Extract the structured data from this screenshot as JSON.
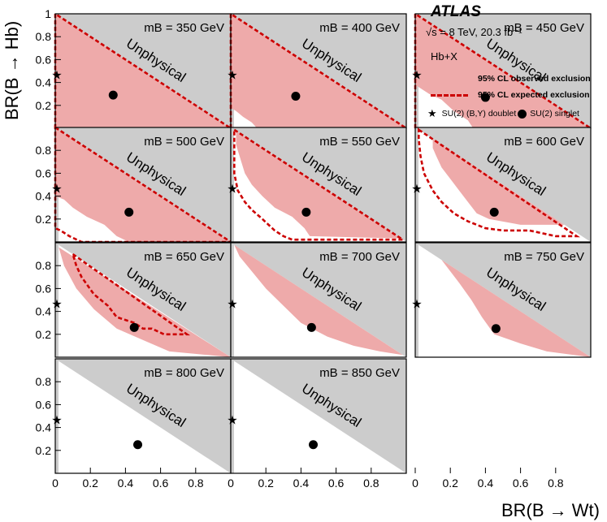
{
  "chart_data": {
    "type": "area",
    "brand": "ATLAS",
    "energy_label": "√s = 8 TeV, 20.3 fb⁻¹",
    "channel": "Hb+X",
    "xlabel": "BR(B → Wt)",
    "ylabel": "BR(B → Hb)",
    "xlim": [
      0,
      1
    ],
    "ylim": [
      0,
      1
    ],
    "x_ticks": [
      "0",
      "0.2",
      "0.4",
      "0.6",
      "0.8"
    ],
    "y_ticks": [
      "0.2",
      "0.4",
      "0.6",
      "0.8",
      "1"
    ],
    "unphysical_label": "Unphysical",
    "legend": {
      "observed": "95% CL observed exclusion",
      "expected": "95% CL expected exclusion",
      "doublet": "SU(2) (B,Y) doublet",
      "singlet": "SU(2) singlet"
    },
    "colors": {
      "observed": "#eeaaaa",
      "expected": "#cc0000",
      "unphysical": "#cccccc"
    },
    "doublet_point": [
      0.0,
      0.47
    ],
    "singlet_points": {
      "350": [
        0.33,
        0.29
      ],
      "400": [
        0.37,
        0.28
      ],
      "450": [
        0.4,
        0.27
      ],
      "500": [
        0.42,
        0.26
      ],
      "550": [
        0.43,
        0.26
      ],
      "600": [
        0.45,
        0.26
      ],
      "650": [
        0.45,
        0.26
      ],
      "700": [
        0.46,
        0.26
      ],
      "750": [
        0.46,
        0.25
      ],
      "800": [
        0.47,
        0.25
      ],
      "850": [
        0.47,
        0.25
      ]
    },
    "panels": [
      {
        "mass_label": "m_B = 350 GeV",
        "observed": [
          [
            0,
            0
          ],
          [
            0,
            1
          ],
          [
            1,
            0
          ]
        ],
        "expected": [
          [
            0,
            0
          ],
          [
            0,
            1
          ],
          [
            1,
            0
          ]
        ]
      },
      {
        "mass_label": "m_B = 400 GeV",
        "observed": [
          [
            0,
            1
          ],
          [
            1,
            0
          ],
          [
            0.15,
            0
          ],
          [
            0.12,
            0.05
          ],
          [
            0.07,
            0.1
          ],
          [
            0.03,
            0.15
          ],
          [
            0,
            0.18
          ]
        ],
        "expected": [
          [
            0,
            0
          ],
          [
            0,
            1
          ],
          [
            1,
            0
          ]
        ]
      },
      {
        "mass_label": "m_B = 450 GeV",
        "observed": [
          [
            0,
            1
          ],
          [
            1,
            0
          ],
          [
            0.33,
            0
          ],
          [
            0.3,
            0.07
          ],
          [
            0.22,
            0.15
          ],
          [
            0.15,
            0.25
          ],
          [
            0.08,
            0.3
          ],
          [
            0.03,
            0.35
          ],
          [
            0,
            0.38
          ]
        ],
        "expected": [
          [
            0,
            0
          ],
          [
            0,
            1
          ],
          [
            1,
            0
          ]
        ]
      },
      {
        "mass_label": "m_B = 500 GeV",
        "observed": [
          [
            0,
            1
          ],
          [
            1,
            0
          ],
          [
            0.42,
            0
          ],
          [
            0.35,
            0.05
          ],
          [
            0.28,
            0.15
          ],
          [
            0.18,
            0.22
          ],
          [
            0.1,
            0.3
          ],
          [
            0.05,
            0.37
          ],
          [
            0,
            0.4
          ]
        ],
        "expected": [
          [
            0,
            1
          ],
          [
            1,
            0
          ],
          [
            0.15,
            0
          ],
          [
            0.08,
            0.05
          ],
          [
            0.03,
            0.1
          ],
          [
            0,
            0.12
          ]
        ]
      },
      {
        "mass_label": "m_B = 550 GeV",
        "observed": [
          [
            0.03,
            0.97
          ],
          [
            0.97,
            0.03
          ],
          [
            0.45,
            0.05
          ],
          [
            0.42,
            0.12
          ],
          [
            0.35,
            0.22
          ],
          [
            0.25,
            0.3
          ],
          [
            0.18,
            0.4
          ],
          [
            0.12,
            0.5
          ],
          [
            0.08,
            0.6
          ],
          [
            0.05,
            0.75
          ],
          [
            0.03,
            0.85
          ]
        ],
        "expected": [
          [
            0.02,
            0.98
          ],
          [
            0.98,
            0.02
          ],
          [
            0.35,
            0.02
          ],
          [
            0.3,
            0.05
          ],
          [
            0.25,
            0.1
          ],
          [
            0.18,
            0.2
          ],
          [
            0.12,
            0.28
          ],
          [
            0.08,
            0.35
          ],
          [
            0.04,
            0.45
          ],
          [
            0.02,
            0.6
          ],
          [
            0.02,
            0.8
          ]
        ]
      },
      {
        "mass_label": "m_B = 600 GeV",
        "observed": [
          [
            0.1,
            0.9
          ],
          [
            0.85,
            0.15
          ],
          [
            0.6,
            0.15
          ],
          [
            0.42,
            0.2
          ],
          [
            0.35,
            0.25
          ],
          [
            0.3,
            0.35
          ],
          [
            0.25,
            0.45
          ],
          [
            0.2,
            0.55
          ],
          [
            0.15,
            0.65
          ],
          [
            0.12,
            0.75
          ],
          [
            0.1,
            0.82
          ]
        ],
        "expected": [
          [
            0.02,
            0.98
          ],
          [
            0.92,
            0.05
          ],
          [
            0.8,
            0.05
          ],
          [
            0.65,
            0.1
          ],
          [
            0.5,
            0.1
          ],
          [
            0.4,
            0.12
          ],
          [
            0.3,
            0.18
          ],
          [
            0.22,
            0.25
          ],
          [
            0.15,
            0.35
          ],
          [
            0.1,
            0.45
          ],
          [
            0.05,
            0.6
          ],
          [
            0.03,
            0.75
          ],
          [
            0.02,
            0.9
          ]
        ]
      },
      {
        "mass_label": "m_B = 650 GeV",
        "observed": [
          [
            0.02,
            0.96
          ],
          [
            1,
            0
          ],
          [
            0.65,
            0.05
          ],
          [
            0.5,
            0.15
          ],
          [
            0.35,
            0.25
          ],
          [
            0.22,
            0.42
          ],
          [
            0.12,
            0.6
          ],
          [
            0.05,
            0.8
          ]
        ],
        "expected": [
          [
            0.1,
            0.9
          ],
          [
            0.75,
            0.2
          ],
          [
            0.62,
            0.2
          ],
          [
            0.55,
            0.25
          ],
          [
            0.5,
            0.25
          ],
          [
            0.45,
            0.3
          ],
          [
            0.35,
            0.35
          ],
          [
            0.3,
            0.45
          ],
          [
            0.22,
            0.55
          ],
          [
            0.15,
            0.7
          ],
          [
            0.12,
            0.8
          ]
        ]
      },
      {
        "mass_label": "m_B = 700 GeV",
        "observed": [
          [
            0.02,
            0.98
          ],
          [
            0.98,
            0.02
          ],
          [
            0.85,
            0.05
          ],
          [
            0.7,
            0.1
          ],
          [
            0.55,
            0.18
          ],
          [
            0.4,
            0.3
          ],
          [
            0.3,
            0.45
          ],
          [
            0.2,
            0.6
          ],
          [
            0.12,
            0.75
          ],
          [
            0.05,
            0.88
          ]
        ],
        "expected": []
      },
      {
        "mass_label": "m_B = 750 GeV",
        "observed": [
          [
            0.15,
            0.85
          ],
          [
            1,
            0
          ],
          [
            0.75,
            0.05
          ],
          [
            0.6,
            0.12
          ],
          [
            0.45,
            0.2
          ],
          [
            0.38,
            0.35
          ],
          [
            0.32,
            0.5
          ],
          [
            0.25,
            0.65
          ],
          [
            0.2,
            0.75
          ]
        ],
        "expected": []
      },
      {
        "mass_label": "m_B = 800 GeV",
        "observed": [],
        "expected": []
      },
      {
        "mass_label": "m_B = 850 GeV",
        "observed": [],
        "expected": []
      }
    ]
  }
}
